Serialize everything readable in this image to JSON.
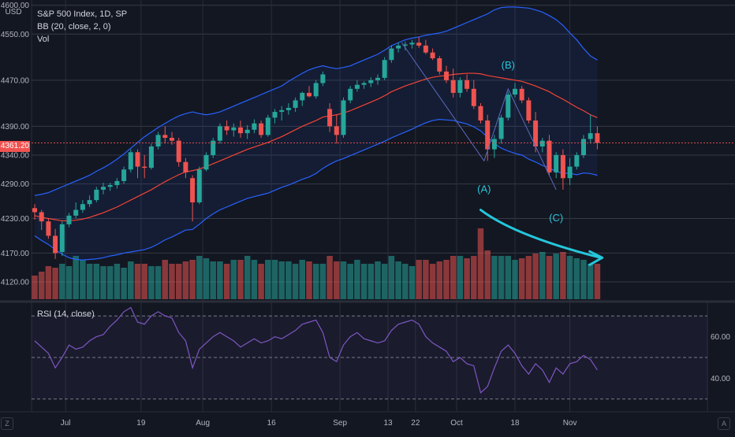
{
  "header": {
    "title": "S&P 500 Index, 1D, SP",
    "indicator_bb": "BB (20, close, 2, 0)",
    "indicator_vol": "Vol",
    "currency": "USD",
    "last_price_label": "4361.20"
  },
  "rsi_panel": {
    "label": "RSI (14, close)"
  },
  "bottom_bar": {
    "left_icon": "Z",
    "right_icon": "A"
  },
  "colors": {
    "background": "#131722",
    "up": "#26a69a",
    "down": "#ef5350",
    "bb_band": "#2962ff",
    "bb_basis": "#f44336",
    "rsi_line": "#7e57c2",
    "annotation": "#26c6da",
    "price_line": "#ef5350"
  },
  "chart_data": [
    {
      "type": "candlestick",
      "title": "S&P 500 Index, 1D, SP",
      "ylabel": "USD",
      "ylim": [
        4090,
        4605
      ],
      "y_ticks": [
        4600,
        4550,
        4470,
        4390,
        4340,
        4290,
        4230,
        4170,
        4120
      ],
      "y_tick_labels": [
        "4600.00",
        "4550.00",
        "4470.00",
        "4390.00",
        "4340.00",
        "4290.00",
        "4230.00",
        "4170.00",
        "4120.00"
      ],
      "x_tick_labels": [
        "Jul",
        "19",
        "Aug",
        "16",
        "Sep",
        "13",
        "22",
        "Oct",
        "18",
        "Nov"
      ],
      "x_tick_index": [
        4.5,
        15.5,
        24.5,
        34.5,
        44.5,
        51.5,
        55.5,
        61.5,
        70,
        78
      ],
      "last_price": 4361.2,
      "ohlc": [
        [
          4248,
          4255,
          4228,
          4241
        ],
        [
          4241,
          4245,
          4210,
          4225
        ],
        [
          4225,
          4230,
          4195,
          4200
        ],
        [
          4200,
          4212,
          4160,
          4170
        ],
        [
          4172,
          4225,
          4165,
          4220
        ],
        [
          4220,
          4240,
          4215,
          4235
        ],
        [
          4235,
          4258,
          4230,
          4245
        ],
        [
          4245,
          4262,
          4240,
          4255
        ],
        [
          4255,
          4270,
          4250,
          4262
        ],
        [
          4262,
          4285,
          4258,
          4280
        ],
        [
          4280,
          4292,
          4272,
          4285
        ],
        [
          4285,
          4292,
          4278,
          4288
        ],
        [
          4288,
          4300,
          4282,
          4295
        ],
        [
          4295,
          4320,
          4290,
          4315
        ],
        [
          4315,
          4350,
          4310,
          4345
        ],
        [
          4345,
          4350,
          4300,
          4320
        ],
        [
          4320,
          4340,
          4300,
          4318
        ],
        [
          4318,
          4360,
          4315,
          4355
        ],
        [
          4355,
          4380,
          4350,
          4375
        ],
        [
          4375,
          4390,
          4360,
          4370
        ],
        [
          4370,
          4380,
          4358,
          4365
        ],
        [
          4365,
          4370,
          4320,
          4328
        ],
        [
          4328,
          4335,
          4300,
          4310
        ],
        [
          4300,
          4305,
          4225,
          4258
        ],
        [
          4258,
          4320,
          4255,
          4315
        ],
        [
          4315,
          4345,
          4312,
          4340
        ],
        [
          4340,
          4370,
          4335,
          4365
        ],
        [
          4365,
          4395,
          4360,
          4390
        ],
        [
          4390,
          4400,
          4375,
          4383
        ],
        [
          4383,
          4395,
          4372,
          4388
        ],
        [
          4388,
          4400,
          4370,
          4378
        ],
        [
          4378,
          4392,
          4368,
          4384
        ],
        [
          4384,
          4402,
          4378,
          4395
        ],
        [
          4395,
          4400,
          4370,
          4375
        ],
        [
          4375,
          4410,
          4372,
          4405
        ],
        [
          4405,
          4420,
          4395,
          4415
        ],
        [
          4415,
          4425,
          4400,
          4418
        ],
        [
          4418,
          4430,
          4410,
          4422
        ],
        [
          4422,
          4440,
          4415,
          4435
        ],
        [
          4435,
          4450,
          4425,
          4448
        ],
        [
          4448,
          4460,
          4440,
          4442
        ],
        [
          4442,
          4470,
          4438,
          4465
        ],
        [
          4465,
          4485,
          4460,
          4480
        ],
        [
          4420,
          4430,
          4380,
          4390
        ],
        [
          4390,
          4410,
          4360,
          4375
        ],
        [
          4375,
          4440,
          4370,
          4435
        ],
        [
          4435,
          4460,
          4430,
          4455
        ],
        [
          4455,
          4470,
          4450,
          4462
        ],
        [
          4462,
          4468,
          4455,
          4465
        ],
        [
          4465,
          4475,
          4458,
          4470
        ],
        [
          4470,
          4480,
          4462,
          4474
        ],
        [
          4474,
          4510,
          4470,
          4505
        ],
        [
          4505,
          4530,
          4500,
          4525
        ],
        [
          4525,
          4535,
          4518,
          4530
        ],
        [
          4530,
          4537,
          4522,
          4532
        ],
        [
          4532,
          4540,
          4525,
          4535
        ],
        [
          4535,
          4545,
          4526,
          4530
        ],
        [
          4530,
          4540,
          4515,
          4518
        ],
        [
          4518,
          4525,
          4505,
          4508
        ],
        [
          4508,
          4512,
          4480,
          4485
        ],
        [
          4485,
          4495,
          4465,
          4470
        ],
        [
          4470,
          4490,
          4440,
          4448
        ],
        [
          4448,
          4475,
          4440,
          4470
        ],
        [
          4470,
          4480,
          4450,
          4455
        ],
        [
          4455,
          4470,
          4420,
          4425
        ],
        [
          4425,
          4430,
          4395,
          4400
        ],
        [
          4400,
          4410,
          4330,
          4350
        ],
        [
          4350,
          4375,
          4335,
          4368
        ],
        [
          4368,
          4410,
          4360,
          4405
        ],
        [
          4405,
          4450,
          4400,
          4445
        ],
        [
          4445,
          4465,
          4440,
          4455
        ],
        [
          4455,
          4460,
          4430,
          4435
        ],
        [
          4435,
          4440,
          4395,
          4400
        ],
        [
          4400,
          4415,
          4345,
          4355
        ],
        [
          4355,
          4370,
          4345,
          4365
        ],
        [
          4365,
          4375,
          4305,
          4310
        ],
        [
          4310,
          4345,
          4300,
          4340
        ],
        [
          4340,
          4350,
          4280,
          4300
        ],
        [
          4300,
          4335,
          4288,
          4320
        ],
        [
          4320,
          4345,
          4315,
          4340
        ],
        [
          4340,
          4375,
          4335,
          4368
        ],
        [
          4368,
          4410,
          4360,
          4378
        ],
        [
          4378,
          4390,
          4350,
          4361.2
        ]
      ],
      "bb_upper": [
        4270,
        4272,
        4275,
        4280,
        4285,
        4290,
        4295,
        4300,
        4305,
        4312,
        4318,
        4325,
        4333,
        4342,
        4352,
        4362,
        4372,
        4380,
        4388,
        4395,
        4402,
        4408,
        4412,
        4415,
        4412,
        4410,
        4412,
        4415,
        4420,
        4425,
        4430,
        4435,
        4440,
        4445,
        4450,
        4455,
        4460,
        4468,
        4475,
        4482,
        4488,
        4492,
        4495,
        4492,
        4490,
        4492,
        4495,
        4500,
        4505,
        4510,
        4515,
        4522,
        4530,
        4535,
        4540,
        4543,
        4545,
        4548,
        4550,
        4552,
        4555,
        4560,
        4565,
        4570,
        4575,
        4580,
        4585,
        4592,
        4596,
        4597,
        4597,
        4596,
        4595,
        4592,
        4588,
        4582,
        4575,
        4565,
        4552,
        4540,
        4525,
        4512,
        4505
      ],
      "bb_basis": [
        4235,
        4232,
        4230,
        4228,
        4226,
        4226,
        4227,
        4229,
        4232,
        4236,
        4240,
        4245,
        4250,
        4256,
        4262,
        4268,
        4274,
        4280,
        4287,
        4294,
        4300,
        4306,
        4311,
        4313,
        4316,
        4320,
        4325,
        4330,
        4335,
        4340,
        4345,
        4350,
        4354,
        4358,
        4362,
        4367,
        4372,
        4378,
        4384,
        4390,
        4395,
        4400,
        4406,
        4408,
        4410,
        4413,
        4417,
        4422,
        4427,
        4432,
        4437,
        4443,
        4450,
        4455,
        4460,
        4464,
        4468,
        4472,
        4475,
        4477,
        4478,
        4480,
        4481,
        4482,
        4482,
        4481,
        4478,
        4476,
        4474,
        4472,
        4470,
        4468,
        4464,
        4460,
        4455,
        4450,
        4443,
        4437,
        4430,
        4423,
        4417,
        4410,
        4405
      ],
      "bb_lower": [
        4200,
        4192,
        4185,
        4176,
        4168,
        4162,
        4159,
        4158,
        4159,
        4160,
        4162,
        4165,
        4167,
        4170,
        4172,
        4174,
        4176,
        4180,
        4186,
        4193,
        4198,
        4204,
        4210,
        4211,
        4220,
        4230,
        4238,
        4245,
        4250,
        4255,
        4260,
        4265,
        4268,
        4271,
        4274,
        4279,
        4284,
        4288,
        4293,
        4298,
        4302,
        4308,
        4317,
        4324,
        4330,
        4334,
        4339,
        4344,
        4349,
        4354,
        4359,
        4364,
        4370,
        4375,
        4380,
        4385,
        4391,
        4396,
        4400,
        4402,
        4401,
        4400,
        4397,
        4394,
        4389,
        4382,
        4371,
        4360,
        4352,
        4347,
        4343,
        4340,
        4333,
        4328,
        4322,
        4318,
        4311,
        4309,
        4308,
        4306,
        4309,
        4308,
        4305
      ],
      "volume": [
        0.3,
        0.35,
        0.42,
        0.4,
        0.45,
        0.42,
        0.55,
        0.5,
        0.45,
        0.45,
        0.42,
        0.42,
        0.45,
        0.4,
        0.48,
        0.45,
        0.45,
        0.42,
        0.42,
        0.5,
        0.45,
        0.45,
        0.48,
        0.5,
        0.55,
        0.52,
        0.48,
        0.48,
        0.45,
        0.5,
        0.5,
        0.55,
        0.5,
        0.45,
        0.5,
        0.5,
        0.48,
        0.48,
        0.45,
        0.5,
        0.48,
        0.45,
        0.45,
        0.55,
        0.48,
        0.48,
        0.45,
        0.5,
        0.45,
        0.45,
        0.48,
        0.45,
        0.55,
        0.48,
        0.45,
        0.42,
        0.5,
        0.5,
        0.45,
        0.48,
        0.5,
        0.55,
        0.55,
        0.52,
        0.55,
        0.9,
        0.62,
        0.55,
        0.55,
        0.55,
        0.5,
        0.52,
        0.55,
        0.58,
        0.6,
        0.55,
        0.58,
        0.6,
        0.55,
        0.52,
        0.5,
        0.45,
        0.45
      ],
      "annotations": [
        "(A)",
        "(B)",
        "(C)"
      ]
    },
    {
      "type": "line",
      "title": "RSI (14, close)",
      "ylim": [
        25,
        75
      ],
      "y_ticks": [
        60,
        40
      ],
      "y_tick_labels": [
        "60.00",
        "40.00"
      ],
      "bands": [
        70,
        50,
        30
      ],
      "values": [
        58,
        55,
        52,
        45,
        50,
        56,
        54,
        55,
        58,
        60,
        61,
        65,
        68,
        72,
        74,
        67,
        66,
        70,
        72,
        70,
        69,
        62,
        58,
        45,
        54,
        57,
        60,
        62,
        60,
        58,
        55,
        57,
        59,
        57,
        58,
        60,
        59,
        61,
        63,
        66,
        67,
        68,
        62,
        50,
        48,
        56,
        60,
        62,
        59,
        58,
        57,
        58,
        63,
        66,
        67,
        68,
        66,
        60,
        57,
        55,
        53,
        48,
        50,
        47,
        46,
        33,
        36,
        45,
        53,
        56,
        52,
        46,
        42,
        47,
        44,
        38,
        45,
        42,
        47,
        48,
        51,
        49,
        44
      ]
    }
  ]
}
